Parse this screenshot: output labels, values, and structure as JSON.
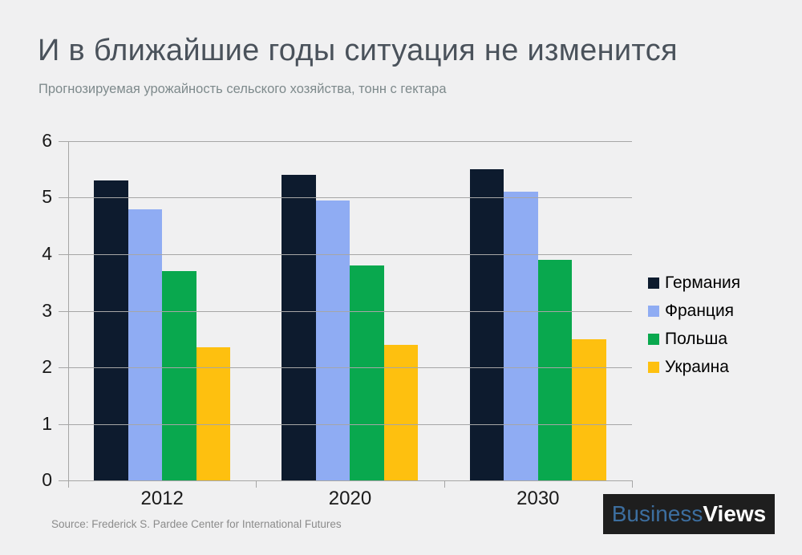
{
  "page": {
    "background": "#F0F0F1"
  },
  "header": {
    "title": "И в ближайшие годы ситуация не изменится",
    "subtitle": "Прогнозируемая урожайность сельского хозяйства, тонн с гектара"
  },
  "chart_data": {
    "type": "bar",
    "title": "Прогнозируемая урожайность сельского хозяйства, тонн с гектара",
    "categories": [
      "2012",
      "2020",
      "2030"
    ],
    "series": [
      {
        "name": "Германия",
        "color": "#0D1B2E",
        "values": [
          5.3,
          5.4,
          5.5
        ]
      },
      {
        "name": "Франция",
        "color": "#8FACF3",
        "values": [
          4.8,
          4.95,
          5.1
        ]
      },
      {
        "name": "Польша",
        "color": "#09A84E",
        "values": [
          3.7,
          3.8,
          3.9
        ]
      },
      {
        "name": "Украина",
        "color": "#FEC00F",
        "values": [
          2.35,
          2.4,
          2.5
        ]
      }
    ],
    "xlabel": "",
    "ylabel": "",
    "ylim": [
      0,
      6
    ],
    "yticks": [
      0,
      1,
      2,
      3,
      4,
      5,
      6
    ],
    "grid": true,
    "legend_position": "right",
    "colors": {
      "gridline": "#A6A6A6",
      "axis_text": "#1A1A1A"
    }
  },
  "footer": {
    "source": "Source: Frederick S. Pardee Center for International Futures",
    "logo": {
      "part1": "Business",
      "part2": "Views",
      "part1_color": "#3C6E9F",
      "part2_color": "#FFFFFF",
      "background": "#1E1E1E"
    }
  }
}
